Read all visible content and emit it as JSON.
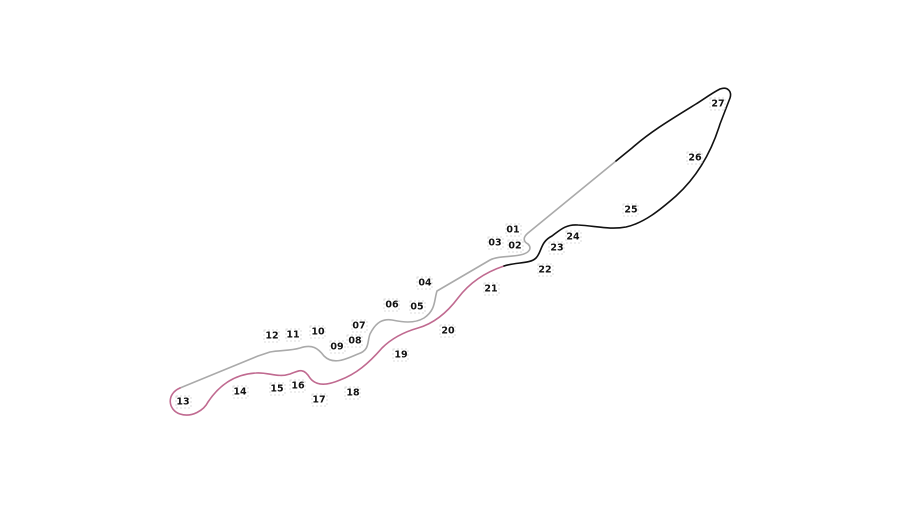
{
  "map": {
    "sectors": [
      {
        "id": "sector-1",
        "color": "#aaaaaa"
      },
      {
        "id": "sector-2",
        "color": "#c06a90"
      },
      {
        "id": "sector-3",
        "color": "#111111"
      }
    ],
    "corners": [
      "01",
      "02",
      "03",
      "04",
      "05",
      "06",
      "07",
      "08",
      "09",
      "10",
      "11",
      "12",
      "13",
      "14",
      "15",
      "16",
      "17",
      "18",
      "19",
      "20",
      "21",
      "22",
      "23",
      "24",
      "25",
      "26",
      "27"
    ]
  }
}
